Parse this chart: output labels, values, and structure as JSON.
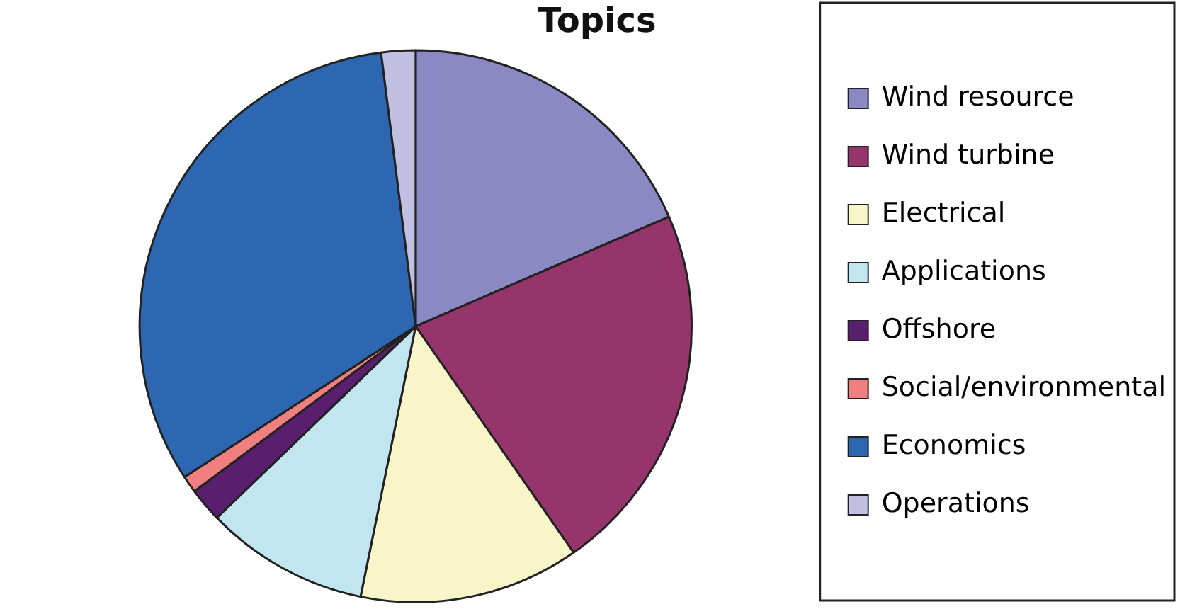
{
  "chart_data": {
    "type": "pie",
    "title": "Topics",
    "categories": [
      "Wind resource",
      "Wind turbine",
      "Electrical",
      "Applications",
      "Offshore",
      "Social/environmental",
      "Economics",
      "Operations"
    ],
    "values": [
      18.5,
      21.8,
      12.9,
      9.6,
      2.0,
      1.0,
      32.2,
      2.0
    ],
    "colors": [
      "#8a89c4",
      "#96356b",
      "#f8f6c8",
      "#c2e6f0",
      "#5a1e6e",
      "#f08080",
      "#2e67b1",
      "#c2c0e2"
    ],
    "legend": "right"
  }
}
